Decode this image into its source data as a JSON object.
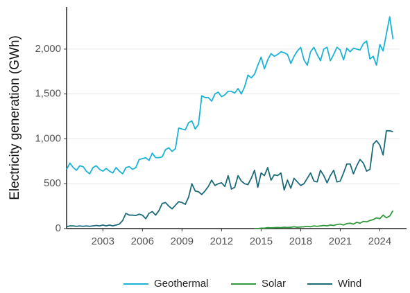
{
  "chart_data": {
    "type": "line",
    "y_label": "Electricity generation (GWh)",
    "x": [
      2000.25,
      2000.5,
      2000.75,
      2001,
      2001.25,
      2001.5,
      2001.75,
      2002,
      2002.25,
      2002.5,
      2002.75,
      2003,
      2003.25,
      2003.5,
      2003.75,
      2004,
      2004.25,
      2004.5,
      2004.75,
      2005,
      2005.25,
      2005.5,
      2005.75,
      2006,
      2006.25,
      2006.5,
      2006.75,
      2007,
      2007.25,
      2007.5,
      2007.75,
      2008,
      2008.25,
      2008.5,
      2008.75,
      2009,
      2009.25,
      2009.5,
      2009.75,
      2010,
      2010.25,
      2010.5,
      2010.75,
      2011,
      2011.25,
      2011.5,
      2011.75,
      2012,
      2012.25,
      2012.5,
      2012.75,
      2013,
      2013.25,
      2013.5,
      2013.75,
      2014,
      2014.25,
      2014.5,
      2014.75,
      2015,
      2015.25,
      2015.5,
      2015.75,
      2016,
      2016.25,
      2016.5,
      2016.75,
      2017,
      2017.25,
      2017.5,
      2017.75,
      2018,
      2018.25,
      2018.5,
      2018.75,
      2019,
      2019.25,
      2019.5,
      2019.75,
      2020,
      2020.25,
      2020.5,
      2020.75,
      2021,
      2021.25,
      2021.5,
      2021.75,
      2022,
      2022.25,
      2022.5,
      2022.75,
      2023,
      2023.25,
      2023.5,
      2023.75,
      2024,
      2024.25,
      2024.5,
      2024.75,
      2025
    ],
    "series": [
      {
        "name": "Geothermal",
        "color": "#1ab3d6",
        "values": [
          660,
          730,
          680,
          650,
          700,
          690,
          640,
          610,
          680,
          700,
          660,
          640,
          670,
          640,
          620,
          680,
          640,
          610,
          680,
          690,
          660,
          680,
          770,
          780,
          790,
          760,
          840,
          790,
          790,
          800,
          880,
          900,
          860,
          890,
          1120,
          1110,
          1100,
          1180,
          1200,
          1110,
          1160,
          1480,
          1460,
          1460,
          1420,
          1500,
          1520,
          1470,
          1490,
          1530,
          1530,
          1510,
          1560,
          1500,
          1580,
          1710,
          1680,
          1720,
          1820,
          1910,
          1780,
          1880,
          1950,
          1920,
          1940,
          1970,
          1960,
          1940,
          1840,
          1920,
          1980,
          2020,
          1880,
          1820,
          1970,
          2020,
          1940,
          1870,
          2000,
          2020,
          1870,
          1940,
          2020,
          1990,
          1880,
          2010,
          1970,
          2010,
          2000,
          1990,
          2060,
          2090,
          1890,
          1920,
          1820,
          2050,
          1980,
          2170,
          2360,
          2110
        ]
      },
      {
        "name": "Solar",
        "color": "#2e9a3a",
        "values": [
          null,
          null,
          null,
          null,
          null,
          null,
          null,
          null,
          null,
          null,
          null,
          null,
          null,
          null,
          null,
          null,
          null,
          null,
          null,
          null,
          null,
          null,
          null,
          null,
          null,
          null,
          null,
          null,
          null,
          null,
          null,
          null,
          null,
          null,
          null,
          null,
          null,
          null,
          null,
          null,
          null,
          null,
          null,
          null,
          null,
          null,
          null,
          null,
          null,
          null,
          null,
          null,
          null,
          null,
          null,
          null,
          null,
          0,
          0,
          5,
          5,
          10,
          8,
          10,
          12,
          10,
          15,
          12,
          15,
          20,
          15,
          18,
          20,
          25,
          20,
          30,
          25,
          30,
          35,
          30,
          40,
          35,
          45,
          50,
          40,
          55,
          60,
          50,
          70,
          60,
          80,
          75,
          90,
          100,
          120,
          110,
          150,
          120,
          140,
          200
        ]
      },
      {
        "name": "Wind",
        "color": "#1a6a78",
        "values": [
          20,
          30,
          30,
          25,
          30,
          25,
          30,
          25,
          30,
          35,
          30,
          40,
          30,
          40,
          30,
          40,
          50,
          90,
          170,
          150,
          150,
          145,
          160,
          150,
          110,
          170,
          190,
          150,
          200,
          280,
          290,
          250,
          220,
          260,
          300,
          290,
          270,
          350,
          500,
          420,
          410,
          380,
          420,
          470,
          540,
          480,
          500,
          510,
          470,
          590,
          440,
          460,
          590,
          530,
          500,
          490,
          560,
          650,
          460,
          620,
          590,
          680,
          540,
          600,
          590,
          620,
          430,
          540,
          450,
          560,
          520,
          480,
          500,
          560,
          620,
          530,
          520,
          650,
          590,
          510,
          590,
          650,
          520,
          530,
          620,
          720,
          720,
          610,
          700,
          770,
          730,
          640,
          660,
          940,
          980,
          930,
          820,
          1090,
          1090,
          1080
        ]
      }
    ],
    "xlim": [
      2000.25,
      2025.5
    ],
    "xticks": [
      2003,
      2006,
      2009,
      2012,
      2015,
      2018,
      2021,
      2024
    ],
    "ylim": [
      0,
      2470
    ],
    "yticks": [
      0,
      500,
      {
        "value": 1000,
        "label": "1,000"
      },
      {
        "value": 1500,
        "label": "1,500"
      },
      {
        "value": 2000,
        "label": "2,000"
      }
    ],
    "grid": true
  }
}
